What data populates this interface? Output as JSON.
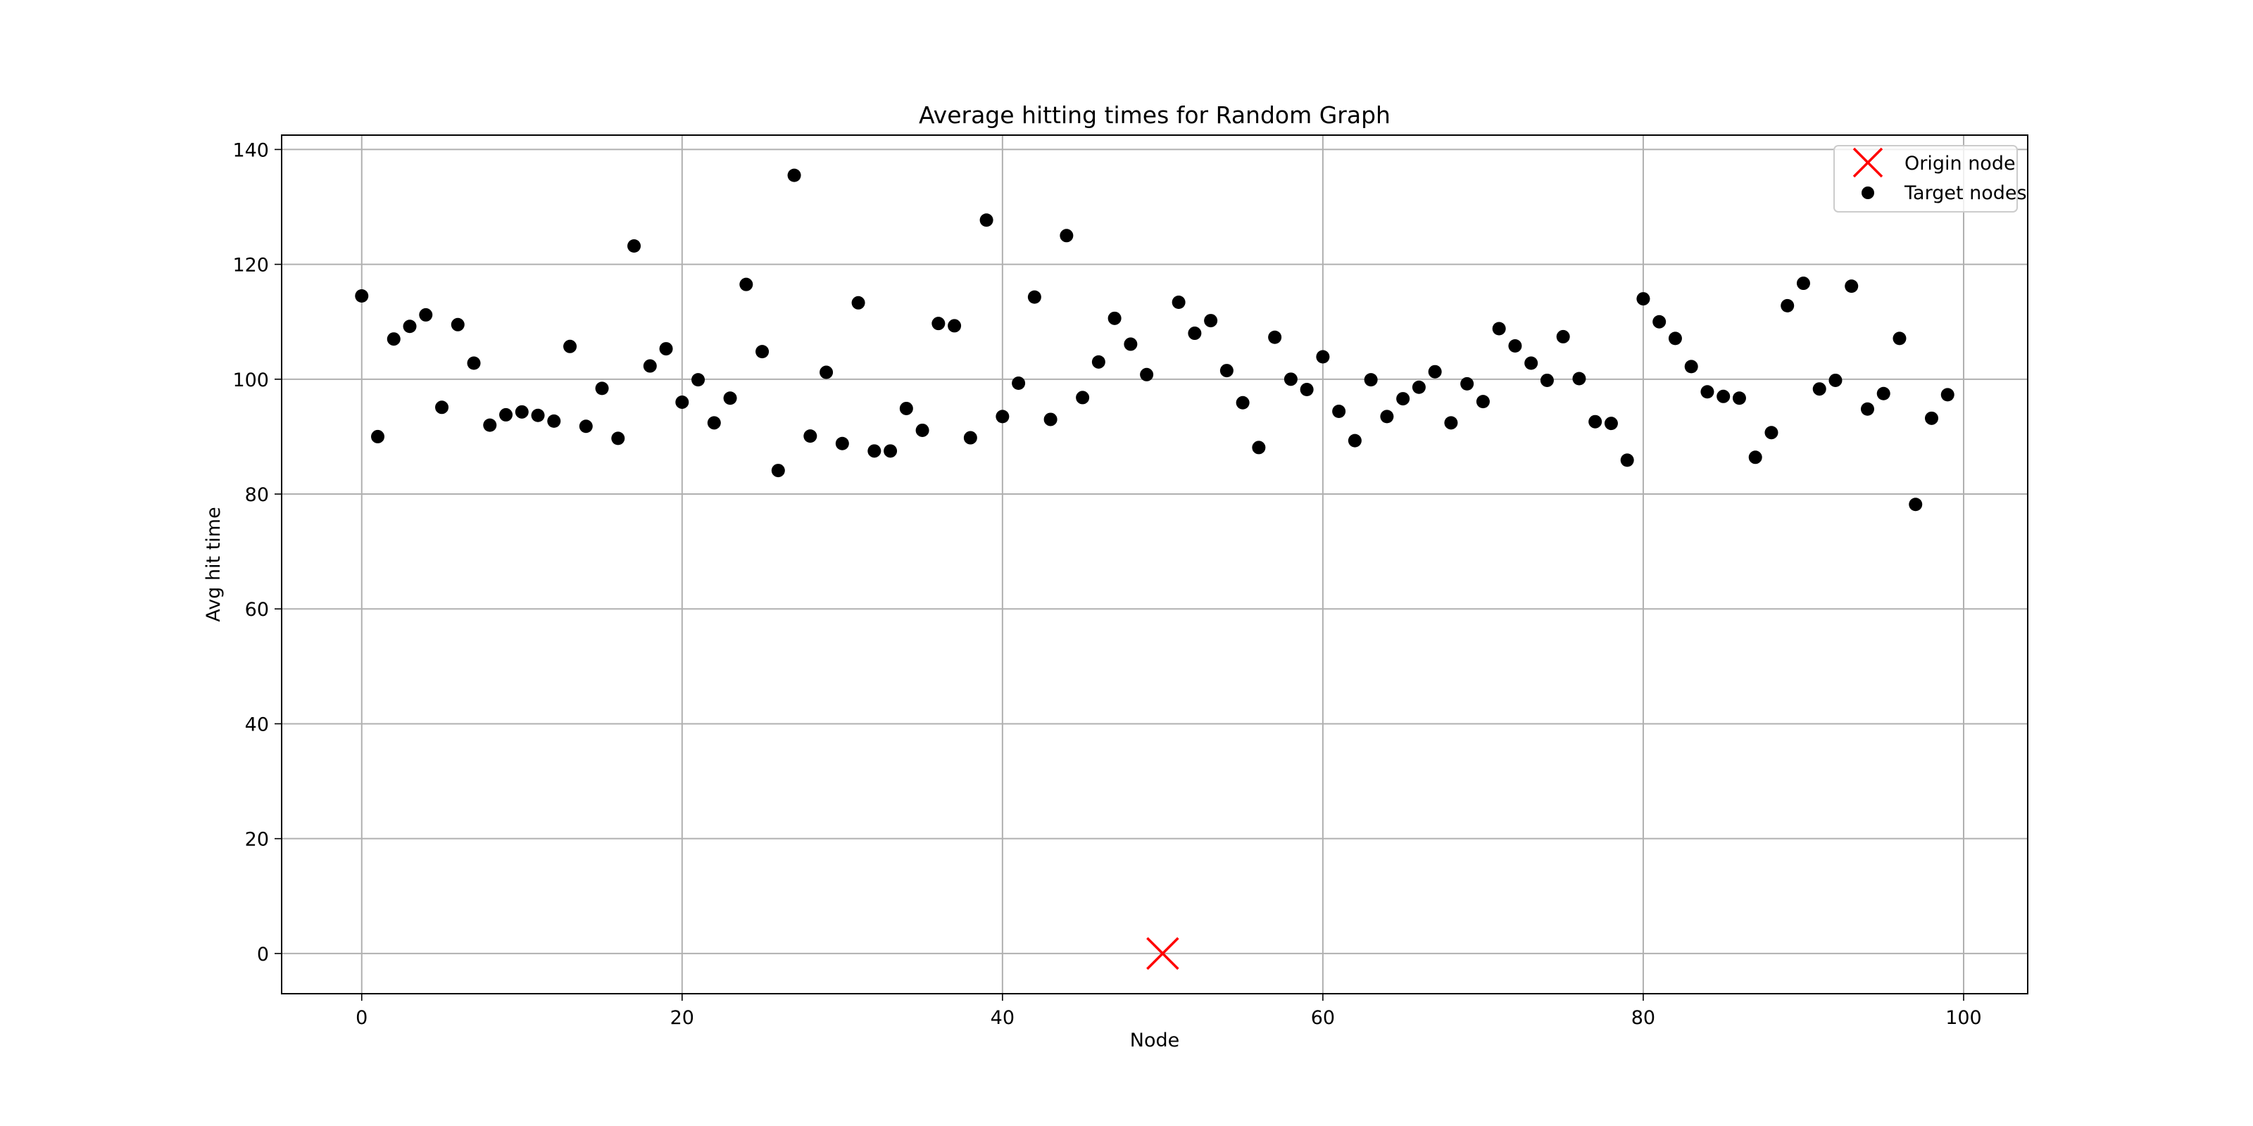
{
  "chart_data": {
    "type": "scatter",
    "title": "Average hitting times for Random Graph",
    "xlabel": "Node",
    "ylabel": "Avg hit time",
    "xlim": [
      -5,
      104
    ],
    "ylim": [
      -7,
      142.5
    ],
    "xticks": [
      0,
      20,
      40,
      60,
      80,
      100
    ],
    "yticks": [
      0,
      20,
      40,
      60,
      80,
      100,
      120,
      140
    ],
    "grid": true,
    "legend_position": "top-right",
    "series": [
      {
        "name": "Origin node",
        "marker": "x",
        "color": "#ff0000",
        "points": [
          [
            50,
            0
          ]
        ]
      },
      {
        "name": "Target nodes",
        "marker": "circle",
        "color": "#000000",
        "x": [
          0,
          1,
          2,
          3,
          4,
          5,
          6,
          7,
          8,
          9,
          10,
          11,
          12,
          13,
          14,
          15,
          16,
          17,
          18,
          19,
          20,
          21,
          22,
          23,
          24,
          25,
          26,
          27,
          28,
          29,
          30,
          31,
          32,
          33,
          34,
          35,
          36,
          37,
          38,
          39,
          40,
          41,
          42,
          43,
          44,
          45,
          46,
          47,
          48,
          49,
          51,
          52,
          53,
          54,
          55,
          56,
          57,
          58,
          59,
          60,
          61,
          62,
          63,
          64,
          65,
          66,
          67,
          68,
          69,
          70,
          71,
          72,
          73,
          74,
          75,
          76,
          77,
          78,
          79,
          80,
          81,
          82,
          83,
          84,
          85,
          86,
          87,
          88,
          89,
          90,
          91,
          92,
          93,
          94,
          95,
          96,
          97,
          98,
          99
        ],
        "y": [
          114.5,
          90,
          107,
          109.2,
          111.2,
          95.1,
          109.5,
          102.8,
          92,
          93.8,
          94.3,
          93.7,
          92.7,
          105.7,
          91.8,
          98.4,
          89.7,
          123.2,
          102.3,
          105.3,
          96,
          99.9,
          92.4,
          96.7,
          116.5,
          104.8,
          84.1,
          135.5,
          90.1,
          101.2,
          88.8,
          113.3,
          87.5,
          87.5,
          94.9,
          91.1,
          109.7,
          109.3,
          89.8,
          127.7,
          93.5,
          99.3,
          114.3,
          93,
          125,
          96.8,
          103,
          110.6,
          106.1,
          100.8,
          113.4,
          108,
          110.2,
          101.5,
          95.9,
          88.1,
          107.3,
          100,
          98.2,
          103.9,
          94.4,
          89.3,
          99.9,
          93.5,
          96.6,
          98.6,
          101.3,
          92.4,
          99.2,
          96.1,
          108.8,
          105.8,
          102.8,
          99.8,
          107.4,
          100.1,
          92.6,
          92.3,
          85.9,
          114,
          110,
          107.1,
          102.2,
          97.8,
          97,
          96.7,
          86.4,
          90.7,
          112.8,
          116.7,
          98.3,
          99.8,
          116.2,
          94.8,
          97.5,
          107.1,
          78.2,
          93.2,
          97.3
        ]
      }
    ]
  }
}
